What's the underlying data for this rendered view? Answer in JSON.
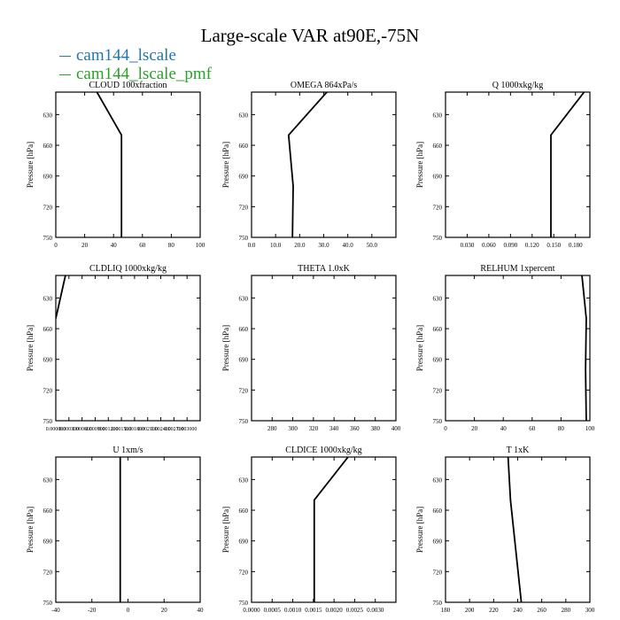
{
  "figure": {
    "title": "Large-scale VAR at90E,-75N",
    "legend": [
      {
        "label": "cam144_lscale",
        "color": "#1f77b4"
      },
      {
        "label": "cam144_lscale_pmf",
        "color": "#2ca02c"
      }
    ],
    "ylabel": "Pressure [hPa]",
    "y_ticks": [
      "630",
      "660",
      "690",
      "720",
      "750"
    ]
  },
  "chart_data": [
    {
      "type": "line",
      "title": "CLOUD  100xfraction",
      "ylim": [
        750,
        608
      ],
      "xlim": [
        0,
        100
      ],
      "x_ticks": [
        "0",
        "20",
        "40",
        "60",
        "80",
        "100"
      ],
      "series": [
        {
          "color": "#000000",
          "points": [
            [
              28.5,
              608
            ],
            [
              45.5,
              650
            ],
            [
              45.5,
              750
            ]
          ]
        }
      ]
    },
    {
      "type": "line",
      "title": "OMEGA  864xPa/s",
      "ylim": [
        750,
        608
      ],
      "xlim": [
        0,
        60
      ],
      "x_ticks": [
        "0.0",
        "10.0",
        "20.0",
        "30.0",
        "40.0",
        "50.0"
      ],
      "series": [
        {
          "color": "#000000",
          "points": [
            [
              31.3,
              608
            ],
            [
              15.4,
              650
            ],
            [
              17.3,
              700
            ],
            [
              17.0,
              750
            ]
          ]
        }
      ]
    },
    {
      "type": "line",
      "title": "Q  1000xkg/kg",
      "ylim": [
        750,
        608
      ],
      "xlim": [
        0,
        0.2
      ],
      "x_ticks": [
        "0.030",
        "0.060",
        "0.090",
        "0.120",
        "0.150",
        "0.180"
      ],
      "series": [
        {
          "color": "#000000",
          "points": [
            [
              0.192,
              608
            ],
            [
              0.146,
              650
            ],
            [
              0.146,
              750
            ]
          ]
        }
      ]
    },
    {
      "type": "line",
      "title": "CLDLIQ  1000xkg/kg",
      "ylim": [
        750,
        608
      ],
      "xlim": [
        0,
        0.0033
      ],
      "x_ticks": [
        "0.000000",
        "0.000300",
        "0.000600",
        "0.000900",
        "0.001200",
        "0.001500",
        "0.001800",
        "0.002100",
        "0.002400",
        "0.002700",
        "0.003000"
      ],
      "series": [
        {
          "color": "#000000",
          "points": [
            [
              0.00022,
              608
            ],
            [
              0.0,
              650
            ]
          ]
        }
      ]
    },
    {
      "type": "line",
      "title": "THETA  1.0xK",
      "ylim": [
        750,
        608
      ],
      "xlim": [
        260,
        400
      ],
      "x_ticks": [
        "280",
        "300",
        "320",
        "340",
        "360",
        "380",
        "400"
      ],
      "series": []
    },
    {
      "type": "line",
      "title": "RELHUM  1xpercent",
      "ylim": [
        750,
        608
      ],
      "xlim": [
        0,
        100
      ],
      "x_ticks": [
        "0",
        "20",
        "40",
        "60",
        "80",
        "100"
      ],
      "series": [
        {
          "color": "#000000",
          "points": [
            [
              94.5,
              608
            ],
            [
              97.5,
              650
            ],
            [
              97.0,
              700
            ],
            [
              97.5,
              750
            ]
          ]
        }
      ]
    },
    {
      "type": "line",
      "title": "U  1xm/s",
      "ylim": [
        750,
        608
      ],
      "xlim": [
        -40,
        40
      ],
      "x_ticks": [
        "-40",
        "-20",
        "0",
        "20",
        "40"
      ],
      "series": [
        {
          "color": "#000000",
          "points": [
            [
              -4.3,
              608
            ],
            [
              -4.3,
              750
            ]
          ]
        }
      ]
    },
    {
      "type": "line",
      "title": "CLDICE  1000xkg/kg",
      "ylim": [
        750,
        608
      ],
      "xlim": [
        0,
        0.0035
      ],
      "x_ticks": [
        "0.0000",
        "0.0005",
        "0.0010",
        "0.0015",
        "0.0020",
        "0.0025",
        "0.0030"
      ],
      "series": [
        {
          "color": "#000000",
          "points": [
            [
              0.00234,
              608
            ],
            [
              0.00152,
              650
            ],
            [
              0.00152,
              750
            ]
          ]
        }
      ]
    },
    {
      "type": "line",
      "title": "T  1xK",
      "ylim": [
        750,
        608
      ],
      "xlim": [
        180,
        300
      ],
      "x_ticks": [
        "180",
        "200",
        "220",
        "240",
        "260",
        "280",
        "300"
      ],
      "series": [
        {
          "color": "#000000",
          "points": [
            [
              232,
              608
            ],
            [
              234,
              650
            ],
            [
              243,
              750
            ]
          ]
        }
      ]
    }
  ]
}
